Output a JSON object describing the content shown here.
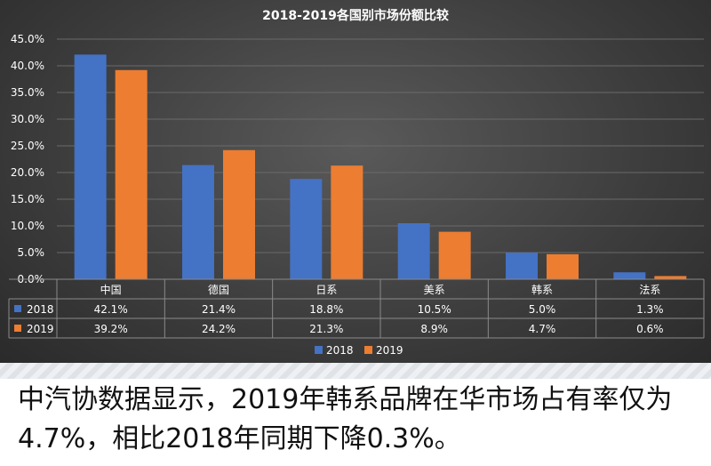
{
  "chart_data": {
    "type": "bar",
    "title": "2018-2019各国别市场份额比较",
    "categories": [
      "中国",
      "德国",
      "日系",
      "美系",
      "韩系",
      "法系"
    ],
    "series": [
      {
        "name": "2018",
        "values": [
          42.1,
          21.4,
          18.8,
          10.5,
          5.0,
          1.3
        ],
        "labels": [
          "42.1%",
          "21.4%",
          "18.8%",
          "10.5%",
          "5.0%",
          "1.3%"
        ],
        "color": "#4472c4"
      },
      {
        "name": "2019",
        "values": [
          39.2,
          24.2,
          21.3,
          8.9,
          4.7,
          0.6
        ],
        "labels": [
          "39.2%",
          "24.2%",
          "21.3%",
          "8.9%",
          "4.7%",
          "0.6%"
        ],
        "color": "#ed7d31"
      }
    ],
    "ylim": [
      0,
      45
    ],
    "yticks": [
      0,
      5,
      10,
      15,
      20,
      25,
      30,
      35,
      40,
      45
    ],
    "ytick_labels": [
      "0.0%",
      "5.0%",
      "10.0%",
      "15.0%",
      "20.0%",
      "25.0%",
      "30.0%",
      "35.0%",
      "40.0%",
      "45.0%"
    ],
    "grid": true,
    "legend": "bottom",
    "data_table": true
  },
  "caption": "中汽协数据显示，2019年韩系品牌在华市场占有率仅为4.7%，相比2018年同期下降0.3%。"
}
